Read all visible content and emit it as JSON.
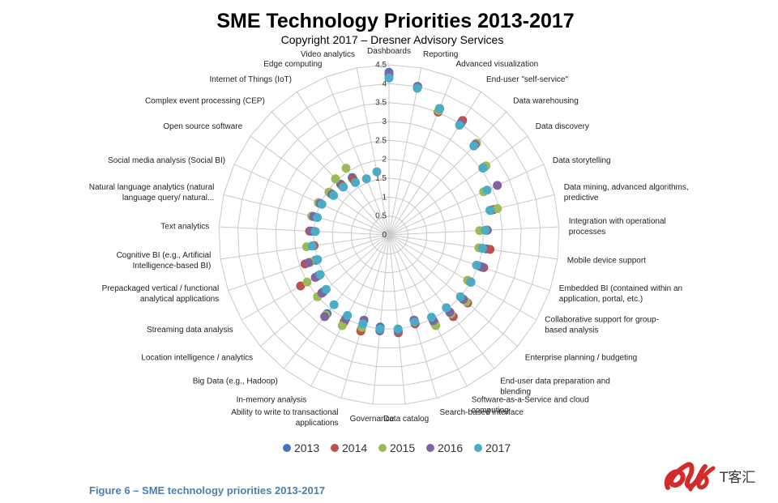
{
  "caption": "Figure 6 – SME technology priorities 2013-2017",
  "watermark": "T客汇",
  "chart_data": {
    "type": "radar",
    "title": "SME Technology Priorities 2013-2017",
    "subtitle": "Copyright 2017 – Dresner Advisory Services",
    "axis": {
      "min": 0,
      "max": 4.5,
      "step": 0.5,
      "ticks": [
        "0",
        "0.5",
        "1",
        "1.5",
        "2",
        "2.5",
        "3",
        "3.5",
        "4",
        "4.5"
      ]
    },
    "legend_position": "bottom",
    "categories": [
      [
        "Dashboards"
      ],
      [
        "Reporting"
      ],
      [
        "Advanced visualization"
      ],
      [
        "End-user \"self-service\""
      ],
      [
        "Data warehousing"
      ],
      [
        "Data discovery"
      ],
      [
        "Data storytelling"
      ],
      [
        "Data mining, advanced algorithms,",
        "predictive"
      ],
      [
        "Integration with operational",
        "processes"
      ],
      [
        "Mobile device support"
      ],
      [
        "Embedded BI (contained within an",
        "application, portal, etc.)"
      ],
      [
        "Collaborative support for group-",
        "based analysis"
      ],
      [
        "Enterprise planning / budgeting"
      ],
      [
        "End-user data preparation and",
        "blending"
      ],
      [
        "Software-as-a-Service and cloud",
        "computing"
      ],
      [
        "Search-based interface"
      ],
      [
        "Data catalog"
      ],
      [
        "Governance"
      ],
      [
        "Ability to write to transactional",
        "applications"
      ],
      [
        "In-memory analysis"
      ],
      [
        "Big Data (e.g., Hadoop)"
      ],
      [
        "Location intelligence / analytics"
      ],
      [
        "Streaming data analysis"
      ],
      [
        "Prepackaged vertical / functional",
        "analytical applications"
      ],
      [
        "Cognitive BI (e.g., Artificial",
        "Intelligence-based BI)"
      ],
      [
        "Text analytics"
      ],
      [
        "Natural language analytics (natural",
        "language query/ natural..."
      ],
      [
        "Social media analysis (Social BI)"
      ],
      [
        "Open source software"
      ],
      [
        "Complex event processing (CEP)"
      ],
      [
        "Internet of Things (IoT)"
      ],
      [
        "Edge computing"
      ],
      [
        "Video analytics"
      ]
    ],
    "series": [
      {
        "name": "2013",
        "color": "#4472c4",
        "values": [
          4.3,
          4.0,
          3.6,
          3.55,
          3.3,
          3.1,
          null,
          2.8,
          2.6,
          2.6,
          2.55,
          2.5,
          2.6,
          2.6,
          2.6,
          2.45,
          2.55,
          2.45,
          2.6,
          2.55,
          2.65,
          2.3,
          2.15,
          2.05,
          2.05,
          2.1,
          2.1,
          2.0,
          1.85,
          1.85,
          1.8,
          null,
          null
        ]
      },
      {
        "name": "2014",
        "color": "#c0504d",
        "values": [
          4.25,
          4.0,
          3.5,
          3.6,
          3.35,
          3.05,
          null,
          2.85,
          2.6,
          2.7,
          2.65,
          2.45,
          2.75,
          2.75,
          2.65,
          2.45,
          2.6,
          2.5,
          2.65,
          2.6,
          2.75,
          2.35,
          2.7,
          2.35,
          2.0,
          2.1,
          2.1,
          2.05,
          1.9,
          1.8,
          1.75,
          null,
          null
        ]
      },
      {
        "name": "2015",
        "color": "#9bbb59",
        "values": [
          4.2,
          4.0,
          3.55,
          3.5,
          3.35,
          3.15,
          2.75,
          2.95,
          2.4,
          2.4,
          2.6,
          2.4,
          2.7,
          2.65,
          2.7,
          2.35,
          2.55,
          2.5,
          2.55,
          2.7,
          2.7,
          2.5,
          2.5,
          2.2,
          2.2,
          2.0,
          2.1,
          2.05,
          1.95,
          2.05,
          2.1,
          null,
          null
        ]
      },
      {
        "name": "2016",
        "color": "#8064a2",
        "values": [
          4.25,
          4.0,
          3.6,
          3.5,
          3.3,
          3.05,
          3.15,
          2.75,
          2.6,
          2.5,
          2.6,
          2.5,
          2.6,
          2.6,
          2.55,
          2.35,
          2.55,
          2.55,
          2.35,
          2.5,
          2.75,
          2.35,
          2.25,
          2.25,
          2.05,
          2.05,
          2.05,
          2.0,
          1.85,
          1.75,
          1.65,
          null,
          null
        ]
      },
      {
        "name": "2017",
        "color": "#4bacc6",
        "values": [
          4.15,
          3.95,
          3.6,
          3.45,
          3.25,
          3.05,
          2.85,
          2.75,
          2.55,
          2.5,
          2.45,
          2.5,
          2.5,
          2.45,
          2.45,
          2.4,
          2.5,
          2.5,
          2.45,
          2.4,
          2.35,
          2.2,
          2.1,
          2.0,
          2.05,
          1.95,
          1.95,
          1.95,
          1.8,
          1.75,
          1.65,
          1.6,
          1.7
        ]
      }
    ]
  }
}
